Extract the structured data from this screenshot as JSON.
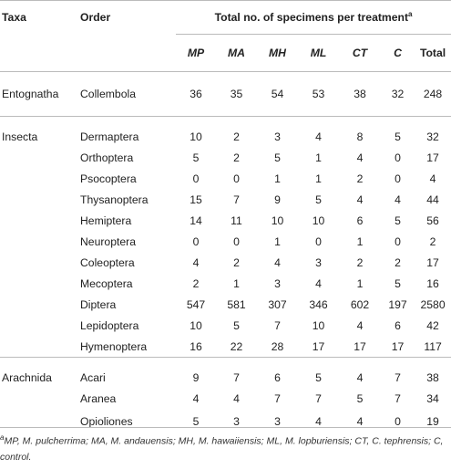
{
  "header": {
    "taxa": "Taxa",
    "order": "Order",
    "total_label": "Total no. of specimens per treatment",
    "total_sup": "a",
    "columns": [
      "MP",
      "MA",
      "MH",
      "ML",
      "CT",
      "C",
      "Total"
    ]
  },
  "groups": [
    {
      "taxa": "Entognatha",
      "rows": [
        {
          "order": "Collembola",
          "values": [
            "36",
            "35",
            "54",
            "53",
            "38",
            "32",
            "248"
          ]
        }
      ]
    },
    {
      "taxa": "Insecta",
      "rows": [
        {
          "order": "Dermaptera",
          "values": [
            "10",
            "2",
            "3",
            "4",
            "8",
            "5",
            "32"
          ]
        },
        {
          "order": "Orthoptera",
          "values": [
            "5",
            "2",
            "5",
            "1",
            "4",
            "0",
            "17"
          ]
        },
        {
          "order": "Psocoptera",
          "values": [
            "0",
            "0",
            "1",
            "1",
            "2",
            "0",
            "4"
          ]
        },
        {
          "order": "Thysanoptera",
          "values": [
            "15",
            "7",
            "9",
            "5",
            "4",
            "4",
            "44"
          ]
        },
        {
          "order": "Hemiptera",
          "values": [
            "14",
            "11",
            "10",
            "10",
            "6",
            "5",
            "56"
          ]
        },
        {
          "order": "Neuroptera",
          "values": [
            "0",
            "0",
            "1",
            "0",
            "1",
            "0",
            "2"
          ]
        },
        {
          "order": "Coleoptera",
          "values": [
            "4",
            "2",
            "4",
            "3",
            "2",
            "2",
            "17"
          ]
        },
        {
          "order": "Mecoptera",
          "values": [
            "2",
            "1",
            "3",
            "4",
            "1",
            "5",
            "16"
          ]
        },
        {
          "order": "Diptera",
          "values": [
            "547",
            "581",
            "307",
            "346",
            "602",
            "197",
            "2580"
          ]
        },
        {
          "order": "Lepidoptera",
          "values": [
            "10",
            "5",
            "7",
            "10",
            "4",
            "6",
            "42"
          ]
        },
        {
          "order": "Hymenoptera",
          "values": [
            "16",
            "22",
            "28",
            "17",
            "17",
            "17",
            "117"
          ]
        }
      ]
    },
    {
      "taxa": "Arachnida",
      "rows": [
        {
          "order": "Acari",
          "values": [
            "9",
            "7",
            "6",
            "5",
            "4",
            "7",
            "38"
          ]
        },
        {
          "order": "Aranea",
          "values": [
            "4",
            "4",
            "7",
            "7",
            "5",
            "7",
            "34"
          ]
        },
        {
          "order": "Opioliones",
          "values": [
            "5",
            "3",
            "3",
            "4",
            "4",
            "0",
            "19"
          ]
        }
      ]
    }
  ],
  "footnote": {
    "sup": "a",
    "text": "MP, M. pulcherrima; MA, M. andauensis; MH, M. hawaiiensis; ML, M. lopburiensis; CT, C. tephrensis; C, control."
  }
}
